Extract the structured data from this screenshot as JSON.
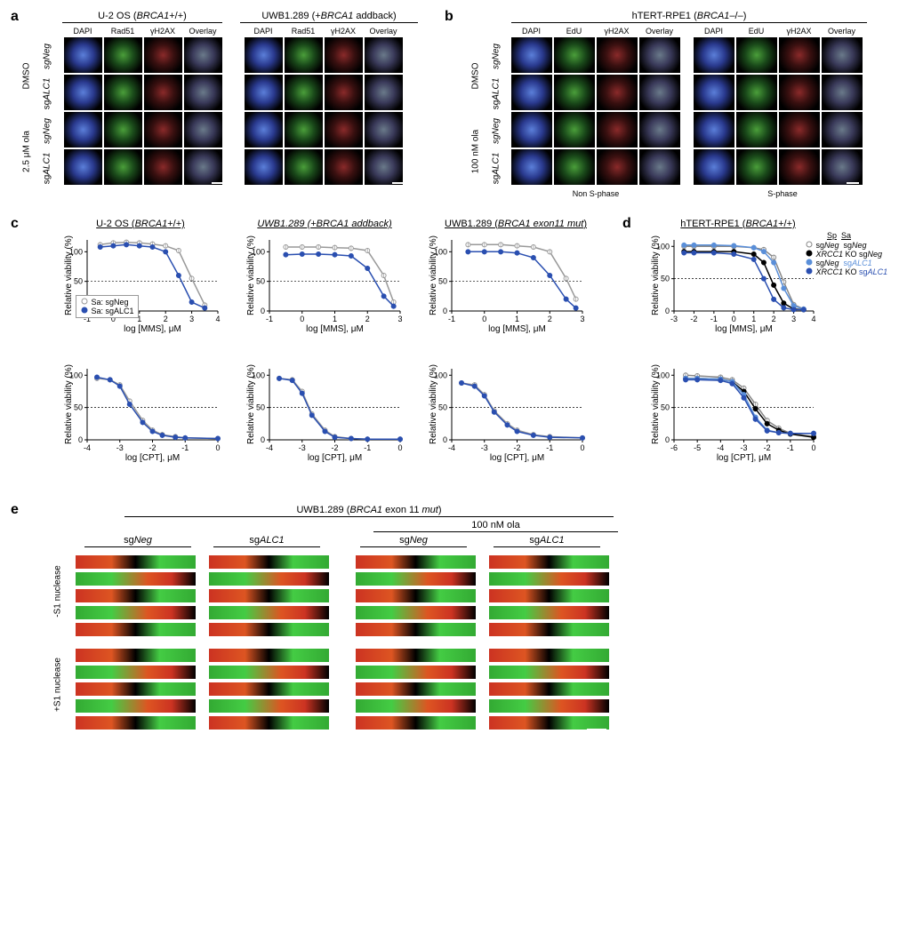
{
  "panels": {
    "a": {
      "label": "a"
    },
    "b": {
      "label": "b"
    },
    "c": {
      "label": "c"
    },
    "d": {
      "label": "d"
    },
    "e": {
      "label": "e"
    }
  },
  "panel_a": {
    "header1": "U-2 OS (BRCA1+/+)",
    "header2": "UWB1.289 (+BRCA1 addback)",
    "cols": [
      "DAPI",
      "Rad51",
      "γH2AX",
      "Overlay"
    ],
    "row_side1": "DMSO",
    "row_side2": "2.5 μM ola",
    "row_sub": [
      "sgNeg",
      "sgALC1",
      "sgNeg",
      "sgALC1"
    ]
  },
  "panel_b": {
    "header": "hTERT-RPE1 (BRCA1–/–)",
    "cols": [
      "DAPI",
      "EdU",
      "γH2AX",
      "Overlay",
      "DAPI",
      "EdU",
      "γH2AX",
      "Overlay"
    ],
    "row_side1": "DMSO",
    "row_side2": "100 nM ola",
    "row_sub": [
      "sgNeg",
      "sgALC1",
      "sgNeg",
      "sgALC1"
    ],
    "below1": "Non S-phase",
    "below2": "S-phase"
  },
  "panel_c": {
    "header1": "U-2 OS (BRCA1+/+)",
    "header2": "UWB1.289 (+BRCA1 addback)",
    "header3": "UWB1.289 (BRCA1 exon11 mut)",
    "ylabel": "Relative viability (%)",
    "xlabel_mms": "log [MMS], μM",
    "xlabel_cpt": "log [CPT], μM",
    "legend_sa_neg": "Sa: sgNeg",
    "legend_sa_alc1": "Sa: sgALC1",
    "charts": {
      "top": {
        "ylim": [
          0,
          120
        ],
        "yticks": [
          0,
          50,
          100
        ],
        "dashed_y": 50,
        "series_gray": {
          "color": "#999999",
          "fill": "#ffffff"
        },
        "series_blue": {
          "color": "#2a4fb0",
          "fill": "#2a4fb0"
        },
        "c1": {
          "xlim": [
            -1,
            4
          ],
          "xticks": [
            -1,
            0,
            1,
            2,
            3,
            4
          ],
          "gray": [
            [
              -0.5,
              112
            ],
            [
              0,
              115
            ],
            [
              0.5,
              116
            ],
            [
              1,
              115
            ],
            [
              1.5,
              113
            ],
            [
              2,
              110
            ],
            [
              2.5,
              102
            ],
            [
              3,
              55
            ],
            [
              3.5,
              10
            ]
          ],
          "blue": [
            [
              -0.5,
              108
            ],
            [
              0,
              110
            ],
            [
              0.5,
              112
            ],
            [
              1,
              110
            ],
            [
              1.5,
              108
            ],
            [
              2,
              100
            ],
            [
              2.5,
              60
            ],
            [
              3,
              15
            ],
            [
              3.5,
              5
            ]
          ]
        },
        "c2": {
          "xlim": [
            -1,
            3
          ],
          "xticks": [
            -1,
            0,
            1,
            2,
            3
          ],
          "gray": [
            [
              -0.5,
              108
            ],
            [
              0,
              108
            ],
            [
              0.5,
              108
            ],
            [
              1,
              107
            ],
            [
              1.5,
              106
            ],
            [
              2,
              102
            ],
            [
              2.5,
              60
            ],
            [
              2.8,
              15
            ]
          ],
          "blue": [
            [
              -0.5,
              95
            ],
            [
              0,
              96
            ],
            [
              0.5,
              96
            ],
            [
              1,
              95
            ],
            [
              1.5,
              93
            ],
            [
              2,
              72
            ],
            [
              2.5,
              25
            ],
            [
              2.8,
              8
            ]
          ]
        },
        "c3": {
          "xlim": [
            -1,
            3
          ],
          "xticks": [
            -1,
            0,
            1,
            2,
            3
          ],
          "gray": [
            [
              -0.5,
              112
            ],
            [
              0,
              112
            ],
            [
              0.5,
              112
            ],
            [
              1,
              110
            ],
            [
              1.5,
              108
            ],
            [
              2,
              100
            ],
            [
              2.5,
              55
            ],
            [
              2.8,
              20
            ]
          ],
          "blue": [
            [
              -0.5,
              100
            ],
            [
              0,
              100
            ],
            [
              0.5,
              100
            ],
            [
              1,
              98
            ],
            [
              1.5,
              90
            ],
            [
              2,
              60
            ],
            [
              2.5,
              20
            ],
            [
              2.8,
              5
            ]
          ]
        }
      },
      "bot": {
        "ylim": [
          0,
          110
        ],
        "yticks": [
          0,
          50,
          100
        ],
        "dashed_y": 50,
        "c1": {
          "xlim": [
            -4,
            0
          ],
          "xticks": [
            -4,
            -3,
            -2,
            -1,
            0
          ],
          "gray": [
            [
              -3.7,
              95
            ],
            [
              -3.3,
              93
            ],
            [
              -3,
              85
            ],
            [
              -2.7,
              60
            ],
            [
              -2.3,
              30
            ],
            [
              -2,
              15
            ],
            [
              -1.7,
              8
            ],
            [
              -1.3,
              5
            ],
            [
              -1,
              3
            ],
            [
              0,
              2
            ]
          ],
          "blue": [
            [
              -3.7,
              97
            ],
            [
              -3.3,
              93
            ],
            [
              -3,
              83
            ],
            [
              -2.7,
              55
            ],
            [
              -2.3,
              27
            ],
            [
              -2,
              13
            ],
            [
              -1.7,
              7
            ],
            [
              -1.3,
              4
            ],
            [
              -1,
              3
            ],
            [
              0,
              2
            ]
          ]
        },
        "c2": {
          "xlim": [
            -4,
            0
          ],
          "xticks": [
            -4,
            -3,
            -2,
            -1,
            0
          ],
          "gray": [
            [
              -3.7,
              95
            ],
            [
              -3.3,
              93
            ],
            [
              -3,
              75
            ],
            [
              -2.7,
              40
            ],
            [
              -2.3,
              15
            ],
            [
              -2,
              5
            ],
            [
              -1.5,
              2
            ],
            [
              -1,
              1
            ],
            [
              0,
              1
            ]
          ],
          "blue": [
            [
              -3.7,
              95
            ],
            [
              -3.3,
              92
            ],
            [
              -3,
              72
            ],
            [
              -2.7,
              38
            ],
            [
              -2.3,
              13
            ],
            [
              -2,
              4
            ],
            [
              -1.5,
              2
            ],
            [
              -1,
              1
            ],
            [
              0,
              1
            ]
          ]
        },
        "c3": {
          "xlim": [
            -4,
            0
          ],
          "xticks": [
            -4,
            -3,
            -2,
            -1,
            0
          ],
          "gray": [
            [
              -3.7,
              88
            ],
            [
              -3.3,
              85
            ],
            [
              -3,
              70
            ],
            [
              -2.7,
              45
            ],
            [
              -2.3,
              25
            ],
            [
              -2,
              15
            ],
            [
              -1.5,
              8
            ],
            [
              -1,
              5
            ],
            [
              0,
              3
            ]
          ],
          "blue": [
            [
              -3.7,
              88
            ],
            [
              -3.3,
              83
            ],
            [
              -3,
              68
            ],
            [
              -2.7,
              43
            ],
            [
              -2.3,
              23
            ],
            [
              -2,
              13
            ],
            [
              -1.5,
              7
            ],
            [
              -1,
              4
            ],
            [
              0,
              3
            ]
          ]
        }
      }
    }
  },
  "panel_d": {
    "header": "hTERT-RPE1 (BRCA1+/+)",
    "sp_sa_header": [
      "Sp",
      "Sa"
    ],
    "legend": [
      {
        "label": "sgNeg",
        "sa": "sgNeg",
        "color": "#888888"
      },
      {
        "label": "XRCC1 KO",
        "sa": "sgNeg",
        "color": "#000000"
      },
      {
        "label": "sgNeg",
        "sa": "sgALC1",
        "color": "#5a8fd9"
      },
      {
        "label": "XRCC1 KO",
        "sa": "sgALC1",
        "color": "#2a4fb0"
      }
    ],
    "chart_top": {
      "ylabel": "Relative viability (%)",
      "xlabel": "log [MMS], μM",
      "ylim": [
        0,
        110
      ],
      "yticks": [
        0,
        50,
        100
      ],
      "dashed_y": 50,
      "xlim": [
        -3,
        4
      ],
      "xticks": [
        -3,
        -2,
        -1,
        0,
        1,
        2,
        3,
        4
      ],
      "series": [
        {
          "color": "#888888",
          "data": [
            [
              -2.5,
              100
            ],
            [
              -2,
              100
            ],
            [
              -1,
              100
            ],
            [
              0,
              100
            ],
            [
              1,
              98
            ],
            [
              1.5,
              95
            ],
            [
              2,
              83
            ],
            [
              2.5,
              45
            ],
            [
              3,
              10
            ],
            [
              3.5,
              3
            ]
          ]
        },
        {
          "color": "#000000",
          "data": [
            [
              -2.5,
              92
            ],
            [
              -2,
              92
            ],
            [
              -1,
              92
            ],
            [
              0,
              92
            ],
            [
              1,
              88
            ],
            [
              1.5,
              75
            ],
            [
              2,
              40
            ],
            [
              2.5,
              12
            ],
            [
              3,
              3
            ],
            [
              3.5,
              2
            ]
          ]
        },
        {
          "color": "#5a8fd9",
          "data": [
            [
              -2.5,
              102
            ],
            [
              -2,
              102
            ],
            [
              -1,
              102
            ],
            [
              0,
              101
            ],
            [
              1,
              98
            ],
            [
              1.5,
              92
            ],
            [
              2,
              75
            ],
            [
              2.5,
              35
            ],
            [
              3,
              8
            ],
            [
              3.5,
              3
            ]
          ]
        },
        {
          "color": "#2a4fb0",
          "data": [
            [
              -2.5,
              90
            ],
            [
              -2,
              90
            ],
            [
              -1,
              90
            ],
            [
              0,
              88
            ],
            [
              1,
              80
            ],
            [
              1.5,
              50
            ],
            [
              2,
              18
            ],
            [
              2.5,
              5
            ],
            [
              3,
              2
            ],
            [
              3.5,
              2
            ]
          ]
        }
      ]
    },
    "chart_bot": {
      "ylabel": "Relative viability (%)",
      "xlabel": "log [CPT], μM",
      "ylim": [
        0,
        110
      ],
      "yticks": [
        0,
        50,
        100
      ],
      "dashed_y": 50,
      "xlim": [
        -6,
        0
      ],
      "xticks": [
        -6,
        -5,
        -4,
        -3,
        -2,
        -1,
        0
      ],
      "series": [
        {
          "color": "#888888",
          "data": [
            [
              -5.5,
              100
            ],
            [
              -5,
              99
            ],
            [
              -4,
              97
            ],
            [
              -3.5,
              93
            ],
            [
              -3,
              80
            ],
            [
              -2.5,
              55
            ],
            [
              -2,
              30
            ],
            [
              -1.5,
              18
            ],
            [
              -1,
              10
            ],
            [
              0,
              5
            ]
          ]
        },
        {
          "color": "#000000",
          "data": [
            [
              -5.5,
              95
            ],
            [
              -5,
              95
            ],
            [
              -4,
              94
            ],
            [
              -3.5,
              90
            ],
            [
              -3,
              75
            ],
            [
              -2.5,
              48
            ],
            [
              -2,
              25
            ],
            [
              -1.5,
              15
            ],
            [
              -1,
              9
            ],
            [
              0,
              4
            ]
          ]
        },
        {
          "color": "#5a8fd9",
          "data": [
            [
              -5.5,
              95
            ],
            [
              -5,
              95
            ],
            [
              -4,
              94
            ],
            [
              -3.5,
              90
            ],
            [
              -3,
              70
            ],
            [
              -2.5,
              35
            ],
            [
              -2,
              15
            ],
            [
              -1.5,
              11
            ],
            [
              -1,
              10
            ],
            [
              0,
              10
            ]
          ]
        },
        {
          "color": "#2a4fb0",
          "data": [
            [
              -5.5,
              93
            ],
            [
              -5,
              93
            ],
            [
              -4,
              92
            ],
            [
              -3.5,
              87
            ],
            [
              -3,
              65
            ],
            [
              -2.5,
              32
            ],
            [
              -2,
              14
            ],
            [
              -1.5,
              11
            ],
            [
              -1,
              10
            ],
            [
              0,
              10
            ]
          ]
        }
      ]
    }
  },
  "panel_e": {
    "header": "UWB1.289 (BRCA1 exon 11 mut)",
    "cond_headers": [
      "sgNeg",
      "sgALC1",
      "sgNeg",
      "sgALC1"
    ],
    "ola_header": "100 nM ola",
    "side1": "-S1 nuclease",
    "side2": "+S1 nuclease"
  },
  "colors": {
    "gray": "#999999",
    "blue": "#2a4fb0",
    "lightblue": "#5a8fd9",
    "black": "#000000",
    "text": "#000000",
    "bg": "#ffffff"
  },
  "fonts": {
    "panel_label_pt": 16,
    "header_pt": 11,
    "col_label_pt": 9,
    "axis_label_pt": 10
  }
}
